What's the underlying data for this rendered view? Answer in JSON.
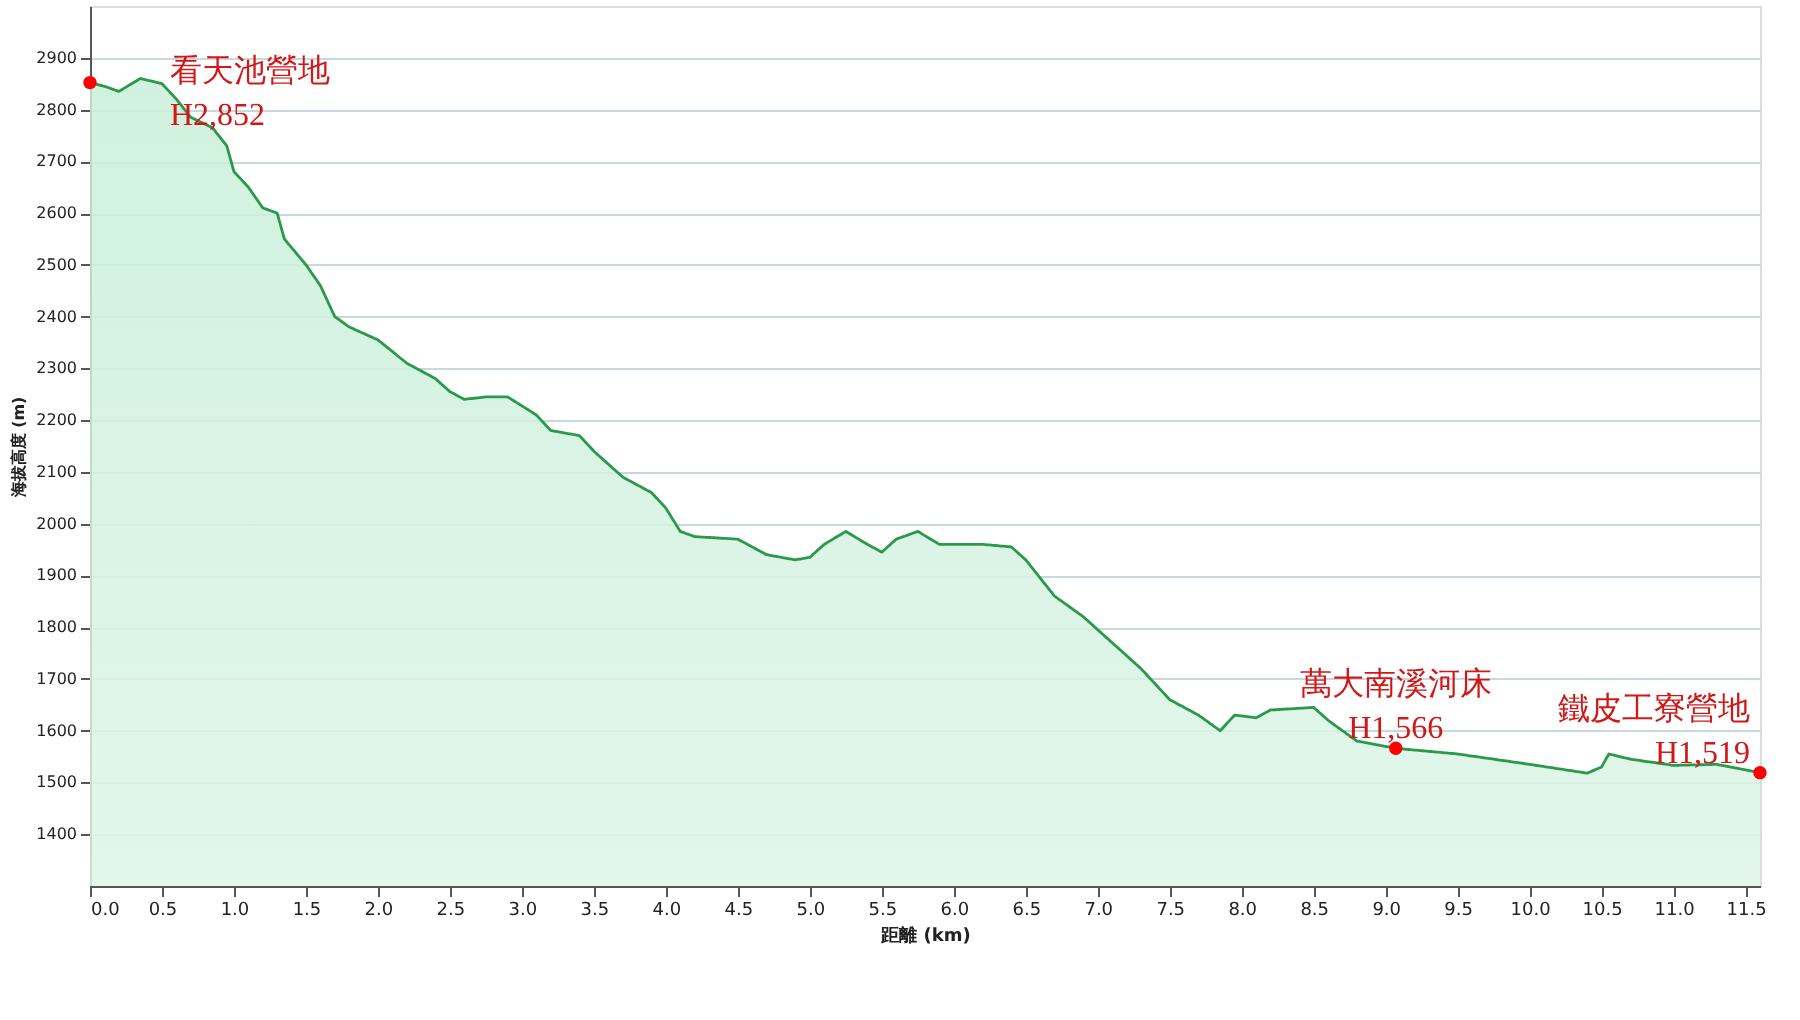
{
  "chart_data": {
    "type": "area",
    "xlabel": "距離 (km)",
    "ylabel": "海拔高度 (m)",
    "xlim": [
      0,
      11.6
    ],
    "ylim": [
      1300,
      3000
    ],
    "xticks": [
      {
        "value": 0,
        "label": "0.0"
      },
      0.5,
      {
        "value": 1,
        "label": "1.0"
      },
      1.5,
      {
        "value": 2,
        "label": "2.0"
      },
      2.5,
      {
        "value": 3,
        "label": "3.0"
      },
      3.5,
      {
        "value": 4,
        "label": "4.0"
      },
      4.5,
      {
        "value": 5,
        "label": "5.0"
      },
      5.5,
      {
        "value": 6,
        "label": "6.0"
      },
      6.5,
      {
        "value": 7,
        "label": "7.0"
      },
      7.5,
      {
        "value": 8,
        "label": "8.0"
      },
      8.5,
      {
        "value": 9,
        "label": "9.0"
      },
      9.5,
      {
        "value": 10,
        "label": "10.0"
      },
      10.5,
      {
        "value": 11,
        "label": "11.0"
      },
      11.5
    ],
    "yticks": [
      1400,
      1500,
      1600,
      1700,
      1800,
      1900,
      2000,
      2100,
      2200,
      2300,
      2400,
      2500,
      2600,
      2700,
      2800,
      2900
    ],
    "grid": "y",
    "series": [
      {
        "color": "#2a9a4a",
        "marker": "none",
        "x": [
          0,
          0.1,
          0.2,
          0.35,
          0.5,
          0.6,
          0.7,
          0.85,
          0.95,
          1.0,
          1.1,
          1.2,
          1.3,
          1.35,
          1.5,
          1.6,
          1.7,
          1.8,
          2.0,
          2.2,
          2.4,
          2.5,
          2.6,
          2.75,
          2.9,
          3.1,
          3.2,
          3.4,
          3.5,
          3.7,
          3.9,
          4.0,
          4.1,
          4.2,
          4.5,
          4.7,
          4.9,
          5.0,
          5.1,
          5.25,
          5.4,
          5.5,
          5.6,
          5.75,
          5.9,
          6.2,
          6.4,
          6.5,
          6.7,
          6.9,
          7.1,
          7.3,
          7.5,
          7.7,
          7.85,
          7.95,
          8.1,
          8.2,
          8.5,
          8.6,
          8.8,
          9.07,
          9.5,
          10.0,
          10.4,
          10.5,
          10.55,
          10.7,
          11.0,
          11.3,
          11.6
        ],
        "values": [
          2852,
          2845,
          2835,
          2860,
          2850,
          2820,
          2785,
          2765,
          2730,
          2680,
          2650,
          2610,
          2600,
          2550,
          2500,
          2460,
          2400,
          2380,
          2355,
          2310,
          2280,
          2255,
          2240,
          2245,
          2245,
          2210,
          2180,
          2170,
          2140,
          2090,
          2060,
          2030,
          1985,
          1975,
          1970,
          1940,
          1930,
          1935,
          1960,
          1985,
          1960,
          1945,
          1970,
          1985,
          1960,
          1960,
          1955,
          1930,
          1860,
          1820,
          1770,
          1720,
          1660,
          1630,
          1600,
          1630,
          1625,
          1640,
          1645,
          1620,
          1580,
          1566,
          1555,
          1535,
          1518,
          1530,
          1555,
          1545,
          1533,
          1535,
          1519
        ]
      },
      {
        "type": "scatter",
        "color": "#ff0000",
        "marker": "circle",
        "x": [
          0,
          9.07,
          11.6
        ],
        "values": [
          2852,
          1566,
          1519
        ]
      }
    ],
    "annotations": [
      {
        "text": "看天池營地\nH2,852",
        "x": 0,
        "y": 2852
      },
      {
        "text": "萬大南溪河床\nH1,566",
        "x": 9.07,
        "y": 1566
      },
      {
        "text": "鐵皮工寮營地\nH1,519",
        "x": 11.6,
        "y": 1519
      }
    ]
  }
}
